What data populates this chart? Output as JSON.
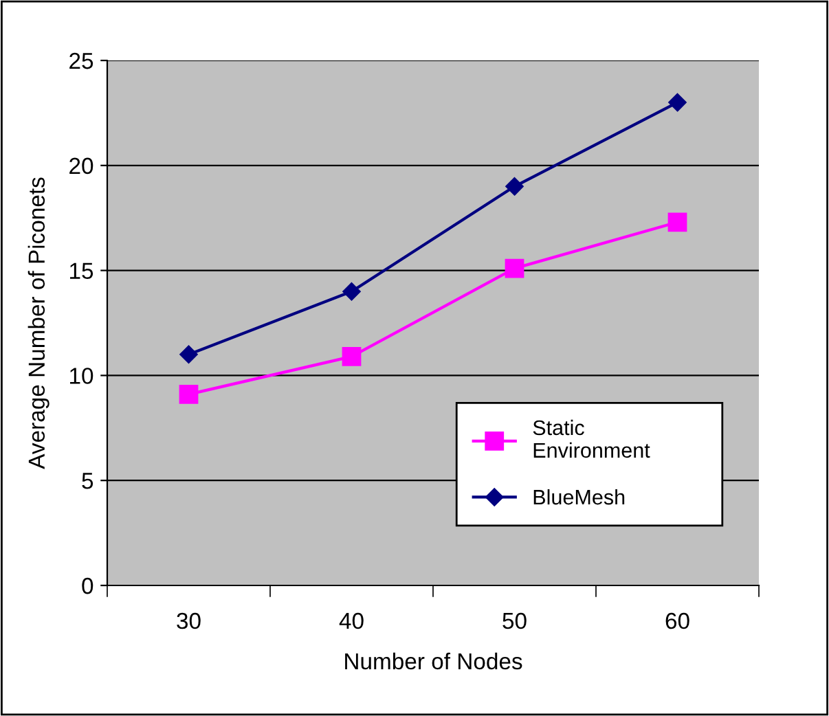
{
  "chart_data": {
    "type": "line",
    "xlabel": "Number of Nodes",
    "ylabel": "Average Number of Piconets",
    "categories": [
      "30",
      "40",
      "50",
      "60"
    ],
    "series": [
      {
        "name": "Static Environment",
        "color": "#ff00ff",
        "values": [
          9.1,
          10.9,
          15.1,
          17.3
        ],
        "marker": "square"
      },
      {
        "name": "BlueMesh",
        "color": "#000080",
        "values": [
          11,
          14,
          19,
          23
        ],
        "marker": "diamond"
      }
    ],
    "ylim": [
      0,
      25
    ],
    "yticks": [
      0,
      5,
      10,
      15,
      20,
      25
    ],
    "grid": "y",
    "legend": "right"
  }
}
